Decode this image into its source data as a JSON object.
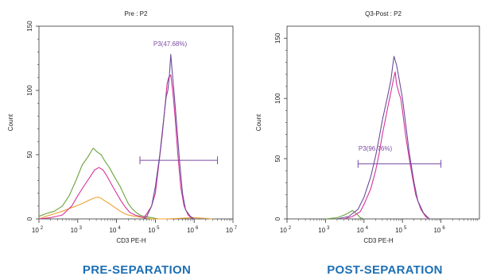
{
  "chart_data": [
    {
      "type": "histogram",
      "title": "Pre : P2",
      "xlabel": "CD3 PE-H",
      "ylabel": "Count",
      "x_scale": "log",
      "x_ticks": [
        {
          "base": "10",
          "exp": "2",
          "value": 100
        },
        {
          "base": "10",
          "exp": "3",
          "value": 1000
        },
        {
          "base": "10",
          "exp": "4",
          "value": 10000
        },
        {
          "base": "10",
          "exp": "5",
          "value": 100000
        },
        {
          "base": "10",
          "exp": "6",
          "value": 1000000
        },
        {
          "base": "10",
          "exp": "7",
          "value": 10000000
        }
      ],
      "y_ticks": [
        "0",
        "50",
        "100",
        "150"
      ],
      "ylim": [
        0,
        150
      ],
      "gate": {
        "label": "P3(47.68%)",
        "x_range": [
          40000,
          4000000
        ],
        "y": 45
      },
      "series": [
        {
          "color": "#6aa33b",
          "points": [
            [
              100,
              2
            ],
            [
              150,
              4
            ],
            [
              250,
              6
            ],
            [
              400,
              10
            ],
            [
              600,
              18
            ],
            [
              900,
              30
            ],
            [
              1300,
              42
            ],
            [
              1800,
              48
            ],
            [
              2500,
              55
            ],
            [
              3200,
              52
            ],
            [
              4000,
              50
            ],
            [
              5000,
              45
            ],
            [
              6500,
              40
            ],
            [
              8000,
              35
            ],
            [
              10000,
              30
            ],
            [
              12500,
              25
            ],
            [
              16000,
              18
            ],
            [
              20000,
              12
            ],
            [
              25000,
              8
            ],
            [
              32000,
              5
            ],
            [
              40000,
              3
            ],
            [
              50000,
              2
            ],
            [
              80000,
              1
            ],
            [
              120000,
              0
            ]
          ]
        },
        {
          "color": "#f0a030",
          "points": [
            [
              100,
              0
            ],
            [
              150,
              2
            ],
            [
              250,
              4
            ],
            [
              400,
              6
            ],
            [
              600,
              8
            ],
            [
              900,
              10
            ],
            [
              1300,
              12
            ],
            [
              1800,
              14
            ],
            [
              2500,
              16
            ],
            [
              3200,
              17
            ],
            [
              4000,
              16
            ],
            [
              5000,
              14
            ],
            [
              6500,
              12
            ],
            [
              8000,
              10
            ],
            [
              10000,
              8
            ],
            [
              12500,
              6
            ],
            [
              16000,
              4
            ],
            [
              20000,
              3
            ],
            [
              30000,
              2
            ],
            [
              50000,
              1
            ],
            [
              80000,
              0
            ],
            [
              200000,
              0
            ],
            [
              1000000,
              1
            ],
            [
              3000000,
              0
            ]
          ]
        },
        {
          "color": "#d6339a",
          "points": [
            [
              100,
              0
            ],
            [
              200,
              1
            ],
            [
              400,
              3
            ],
            [
              700,
              10
            ],
            [
              1000,
              18
            ],
            [
              1400,
              25
            ],
            [
              2000,
              32
            ],
            [
              2700,
              38
            ],
            [
              3500,
              40
            ],
            [
              4500,
              38
            ],
            [
              6000,
              32
            ],
            [
              8000,
              25
            ],
            [
              10000,
              20
            ],
            [
              13000,
              14
            ],
            [
              17000,
              9
            ],
            [
              22000,
              5
            ],
            [
              30000,
              3
            ],
            [
              40000,
              2
            ],
            [
              50000,
              1
            ],
            [
              60000,
              4
            ],
            [
              80000,
              10
            ],
            [
              100000,
              20
            ],
            [
              120000,
              40
            ],
            [
              150000,
              65
            ],
            [
              180000,
              90
            ],
            [
              200000,
              105
            ],
            [
              220000,
              110
            ],
            [
              250000,
              112
            ],
            [
              280000,
              100
            ],
            [
              320000,
              80
            ],
            [
              380000,
              50
            ],
            [
              450000,
              25
            ],
            [
              550000,
              10
            ],
            [
              700000,
              3
            ],
            [
              900000,
              0
            ]
          ]
        },
        {
          "color": "#6b4c9a",
          "points": [
            [
              50000,
              0
            ],
            [
              60000,
              2
            ],
            [
              80000,
              10
            ],
            [
              100000,
              25
            ],
            [
              130000,
              50
            ],
            [
              160000,
              75
            ],
            [
              190000,
              95
            ],
            [
              210000,
              100
            ],
            [
              230000,
              112
            ],
            [
              250000,
              128
            ],
            [
              270000,
              115
            ],
            [
              300000,
              100
            ],
            [
              350000,
              75
            ],
            [
              420000,
              45
            ],
            [
              500000,
              20
            ],
            [
              600000,
              7
            ],
            [
              800000,
              2
            ],
            [
              1000000,
              0
            ]
          ]
        }
      ]
    },
    {
      "type": "histogram",
      "title": "Q3-Post : P2",
      "xlabel": "CD3 PE-H",
      "ylabel": "Count",
      "x_scale": "log",
      "x_ticks": [
        {
          "base": "10",
          "exp": "2",
          "value": 100
        },
        {
          "base": "10",
          "exp": "3",
          "value": 1000
        },
        {
          "base": "10",
          "exp": "4",
          "value": 10000
        },
        {
          "base": "10",
          "exp": "5",
          "value": 100000
        },
        {
          "base": "10",
          "exp": "6",
          "value": 1000000
        }
      ],
      "y_ticks": [
        "0",
        "50",
        "100",
        "150"
      ],
      "ylim": [
        0,
        160
      ],
      "gate": {
        "label": "P3(96.76%)",
        "x_range": [
          7000,
          1000000
        ],
        "y": 45
      },
      "series": [
        {
          "color": "#6aa33b",
          "points": [
            [
              1000,
              0
            ],
            [
              2000,
              1
            ],
            [
              3000,
              3
            ],
            [
              4000,
              5
            ],
            [
              5000,
              7
            ],
            [
              6000,
              5
            ],
            [
              7000,
              3
            ],
            [
              8000,
              1
            ],
            [
              10000,
              0
            ]
          ]
        },
        {
          "color": "#d6339a",
          "points": [
            [
              3000,
              0
            ],
            [
              5000,
              2
            ],
            [
              8000,
              6
            ],
            [
              10000,
              12
            ],
            [
              15000,
              25
            ],
            [
              20000,
              40
            ],
            [
              25000,
              55
            ],
            [
              30000,
              70
            ],
            [
              40000,
              90
            ],
            [
              50000,
              105
            ],
            [
              60000,
              118
            ],
            [
              65000,
              122
            ],
            [
              70000,
              112
            ],
            [
              80000,
              105
            ],
            [
              90000,
              100
            ],
            [
              100000,
              90
            ],
            [
              120000,
              70
            ],
            [
              150000,
              50
            ],
            [
              180000,
              35
            ],
            [
              220000,
              20
            ],
            [
              300000,
              8
            ],
            [
              400000,
              2
            ],
            [
              500000,
              0
            ]
          ]
        },
        {
          "color": "#6b4c9a",
          "points": [
            [
              2000,
              0
            ],
            [
              4000,
              2
            ],
            [
              7000,
              8
            ],
            [
              10000,
              18
            ],
            [
              15000,
              35
            ],
            [
              20000,
              52
            ],
            [
              25000,
              68
            ],
            [
              30000,
              82
            ],
            [
              40000,
              100
            ],
            [
              50000,
              115
            ],
            [
              60000,
              135
            ],
            [
              70000,
              128
            ],
            [
              80000,
              118
            ],
            [
              100000,
              100
            ],
            [
              120000,
              80
            ],
            [
              150000,
              55
            ],
            [
              200000,
              30
            ],
            [
              250000,
              15
            ],
            [
              350000,
              5
            ],
            [
              500000,
              0
            ]
          ]
        }
      ]
    }
  ],
  "captions": {
    "left": "PRE-SEPARATION",
    "right": "POST-SEPARATION"
  }
}
